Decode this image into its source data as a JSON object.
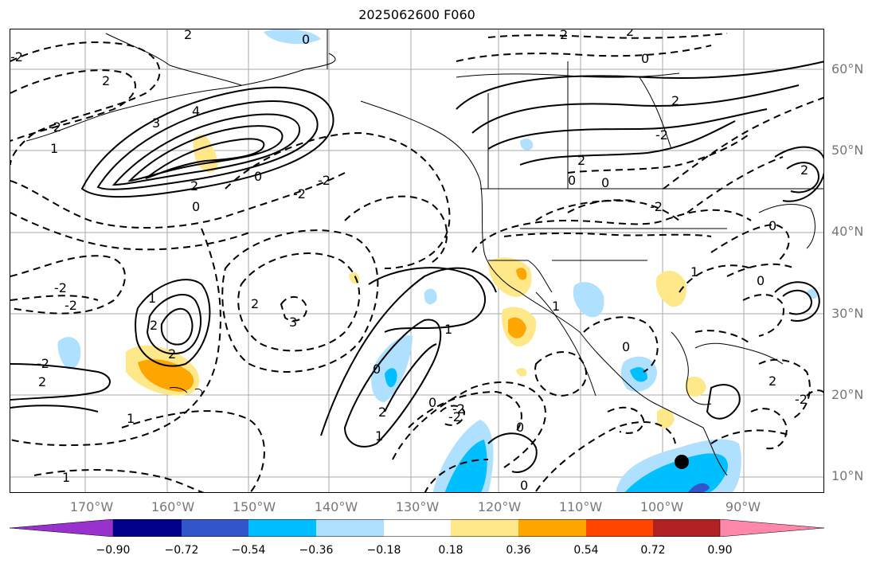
{
  "title": "2025062600 F060",
  "lat_labels": [
    "60°N",
    "50°N",
    "40°N",
    "30°N",
    "20°N",
    "10°N"
  ],
  "lon_labels": [
    "170°W",
    "160°W",
    "150°W",
    "140°W",
    "130°W",
    "120°W",
    "110°W",
    "100°W",
    "90°W"
  ],
  "colorbar": {
    "colors": [
      "#9932cc",
      "#00008b",
      "#3355cc",
      "#00bfff",
      "#b0e0ff",
      "#ffffff",
      "#ffe88a",
      "#ffa500",
      "#ff4500",
      "#b22222",
      "#ff88aa"
    ],
    "tick_labels": [
      "−0.90",
      "−0.72",
      "−0.54",
      "−0.36",
      "−0.18",
      "0.18",
      "0.36",
      "0.54",
      "0.72",
      "0.90"
    ]
  },
  "contour_labels": [
    "0",
    "2",
    "2",
    "2",
    "-2",
    "2",
    "-2",
    "3",
    "4",
    "2",
    "0",
    "-2",
    "-2",
    "0",
    "1",
    "0",
    "2",
    "0",
    "0",
    "-2",
    "2",
    "-2",
    "-2",
    "-2",
    "2",
    "2",
    "2",
    "1",
    "3",
    "-2",
    "2",
    "1",
    "1",
    "1",
    "0",
    "0",
    "-2",
    "0",
    "2",
    "1",
    "1",
    "0",
    "-2",
    "0",
    "0",
    "0",
    "2",
    "2",
    "1",
    "-2"
  ],
  "features": {
    "storm_marker": "black-dot-low"
  }
}
